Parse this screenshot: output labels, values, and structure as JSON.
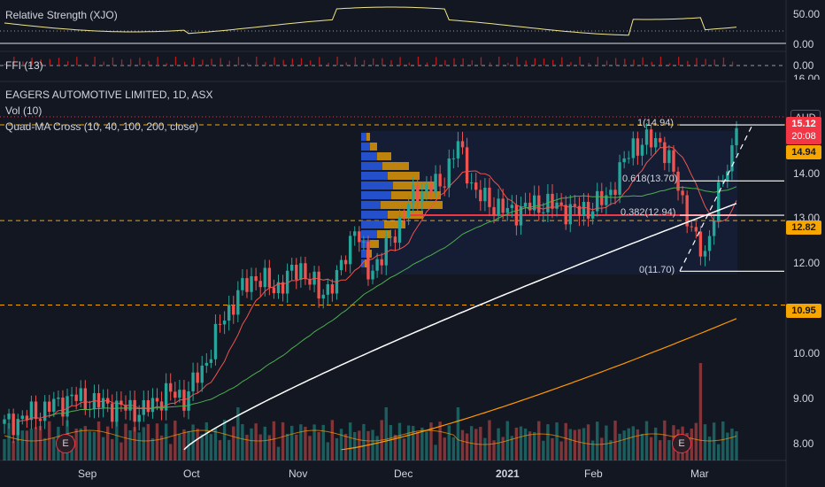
{
  "panes": {
    "rs_label": "Relative Strength (XJO)",
    "rs_ticks": [
      "50.00",
      "0.00"
    ],
    "ffi_label": "FFI (13)",
    "ffi_ticks": [
      "0.00",
      "16.00"
    ]
  },
  "main": {
    "symbol_line": "EAGERS AUTOMOTIVE LIMITED, 1D, ASX",
    "vol_label": "Vol (10)",
    "ma_label": "Quad-MA Cross (10, 40, 100, 200, close)",
    "currency": "AUD",
    "price_tags": [
      {
        "text": "15.12",
        "sub": "20:08",
        "bg": "#f23645",
        "fg": "#ffffff"
      },
      {
        "text": "14.94",
        "bg": "#f7a600",
        "fg": "#131722"
      },
      {
        "text": "12.82",
        "bg": "#f7a600",
        "fg": "#131722"
      },
      {
        "text": "10.95",
        "bg": "#f7a600",
        "fg": "#131722"
      }
    ],
    "y_ticks": [
      "14.00",
      "13.00",
      "12.00",
      "10.00",
      "9.00",
      "8.00"
    ],
    "x_ticks": [
      "Sep",
      "Oct",
      "Nov",
      "Dec",
      "2021",
      "Feb",
      "Mar"
    ],
    "fib_labels": [
      "1(14.94)",
      "0.618(13.70)",
      "0.382(12.94)",
      "0(11.70)"
    ],
    "earnings_marker": "E"
  },
  "colors": {
    "background": "#131722",
    "up": "#26a69a",
    "down": "#ef5350",
    "ma10": "#ef5350",
    "ma40": "#4caf50",
    "ma100": "#ffffff",
    "ma200": "#ff9800",
    "fib": "#ffffff",
    "level": "#f7a600",
    "rs_line": "#f0e68c",
    "vp_up": "#2962ff",
    "vp_down": "#f7a600"
  },
  "chart_data": {
    "type": "candlestick",
    "title": "EAGERS AUTOMOTIVE LIMITED, 1D, ASX",
    "ylabel": "AUD",
    "x": [
      "Sep",
      "Oct",
      "Nov",
      "Dec",
      "2021",
      "Feb",
      "Mar"
    ],
    "ylim": [
      7.75,
      15.5
    ],
    "key_levels": [
      14.94,
      12.82,
      10.95
    ],
    "last_price": 15.12,
    "fibonacci": [
      {
        "ratio": 1,
        "value": 14.94
      },
      {
        "ratio": 0.618,
        "value": 13.7
      },
      {
        "ratio": 0.382,
        "value": 12.94
      },
      {
        "ratio": 0,
        "value": 11.7
      }
    ],
    "ohlc_approx": {
      "Sep": [
        8.5,
        9.0,
        8.3,
        8.9
      ],
      "Oct": [
        9.3,
        11.3,
        9.2,
        11.0
      ],
      "Nov": [
        11.2,
        13.7,
        10.9,
        12.9
      ],
      "Dec": [
        13.0,
        14.8,
        12.8,
        13.2
      ],
      "2021": [
        13.2,
        13.7,
        12.9,
        13.1
      ],
      "Feb": [
        13.1,
        14.6,
        12.9,
        13.8
      ],
      "Mar": [
        12.5,
        15.2,
        11.7,
        15.12
      ]
    },
    "moving_averages": [
      {
        "name": "MA10",
        "approx": [
          8.6,
          9.4,
          11.5,
          13.4,
          13.3,
          13.6,
          14.2
        ]
      },
      {
        "name": "MA40",
        "approx": [
          8.2,
          8.7,
          10.7,
          12.8,
          13.0,
          13.2,
          13.7
        ]
      },
      {
        "name": "MA100",
        "approx": [
          null,
          7.8,
          8.8,
          10.3,
          11.6,
          12.3,
          13.1
        ]
      },
      {
        "name": "MA200",
        "approx": [
          null,
          null,
          7.75,
          7.85,
          8.3,
          9.3,
          10.6
        ]
      }
    ]
  }
}
